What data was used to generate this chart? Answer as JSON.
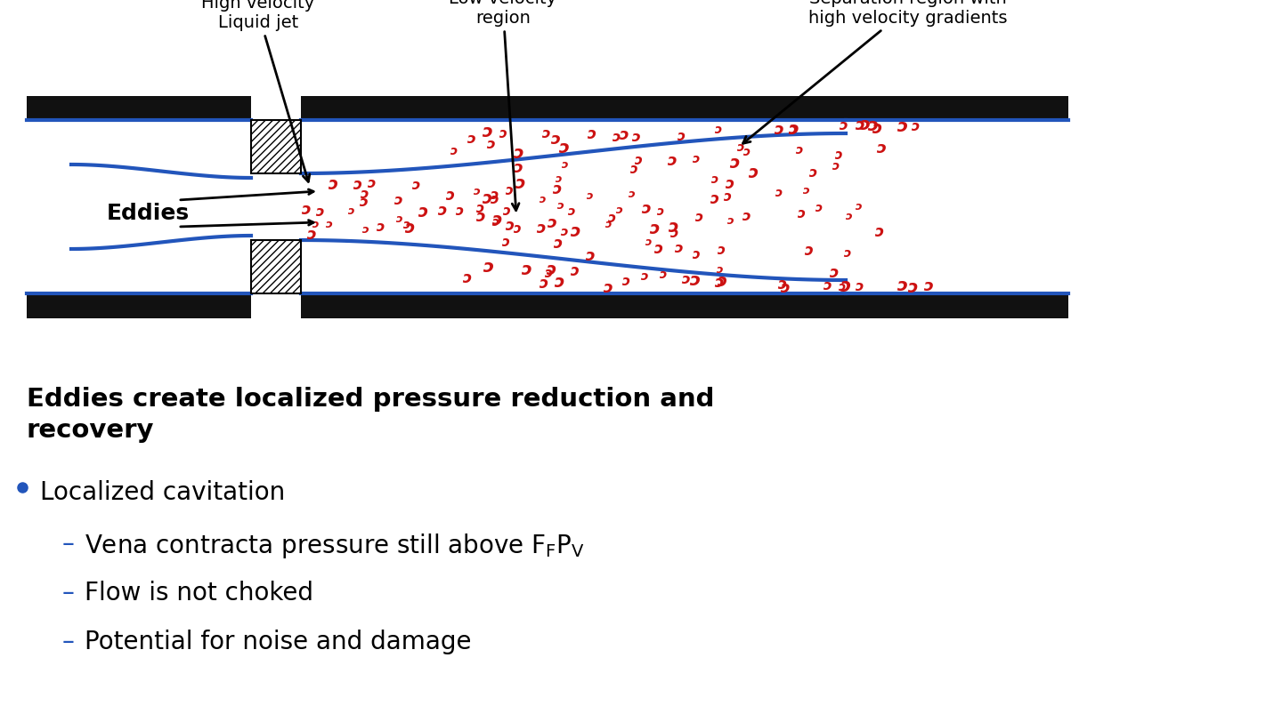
{
  "bg_color": "#ffffff",
  "wall_color": "#111111",
  "blue_color": "#2255bb",
  "red_color": "#cc1111",
  "purple_color": "#7744aa",
  "label1": "High velocity\nLiquid jet",
  "label2": "Low velocity\nregion",
  "label3": "Separation region with\nhigh velocity gradients",
  "label_eddies": "Eddies",
  "title_text": "Eddies create localized pressure reduction and\nrecovery",
  "bullet1": "Localized cavitation",
  "sub2": "Flow is not choked",
  "sub3": "Potential for noise and damage",
  "title_fontsize": 21,
  "label_fontsize": 14,
  "eddies_fontsize": 16,
  "bullet_fontsize": 20,
  "sub_fontsize": 20
}
